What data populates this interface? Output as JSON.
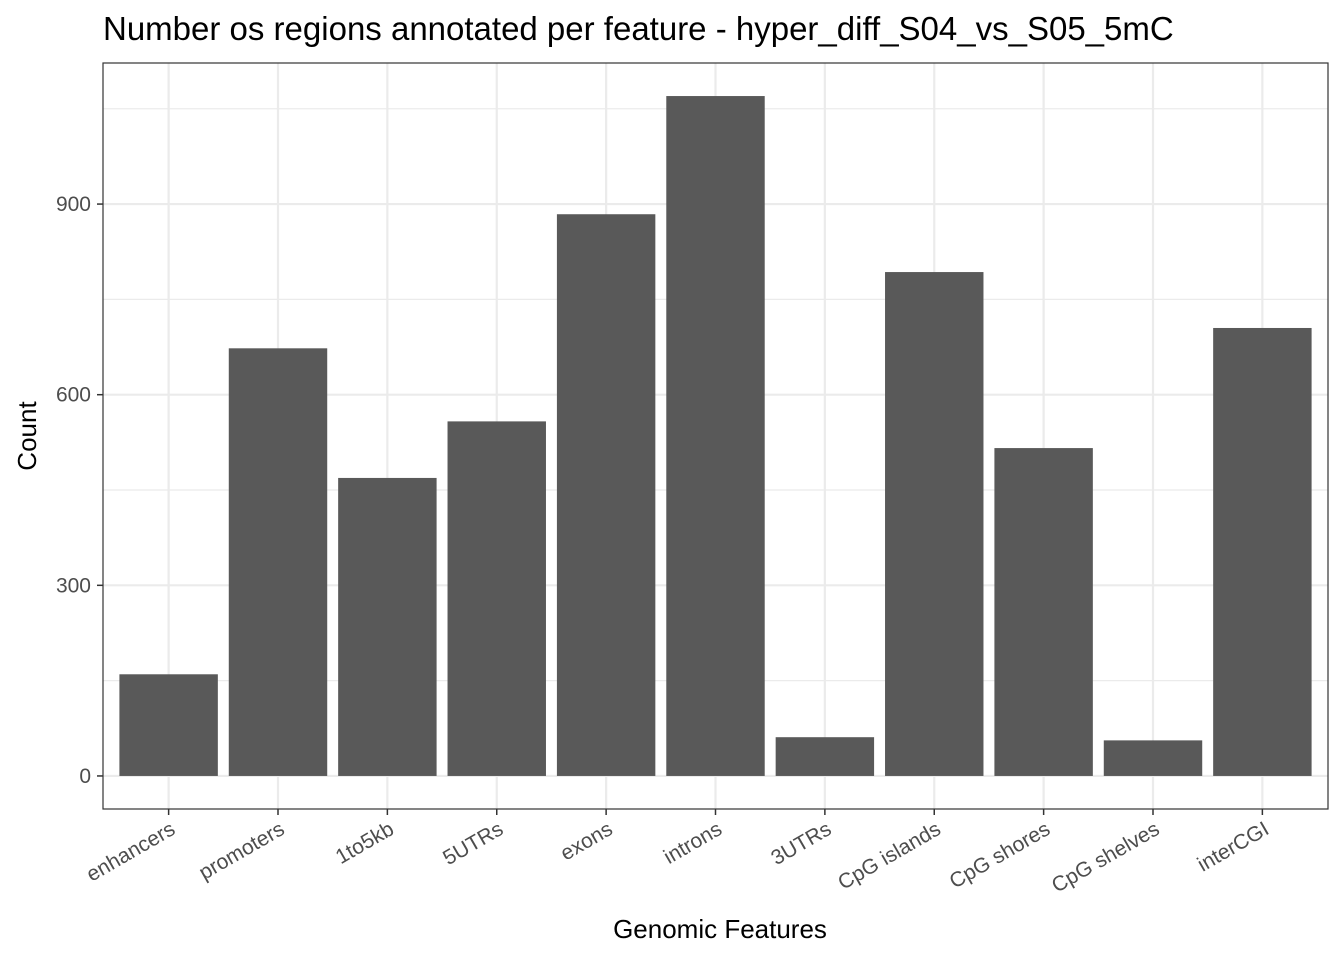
{
  "chart_data": {
    "type": "bar",
    "title": "Number os regions annotated per feature - hyper_diff_S04_vs_S05_5mC",
    "xlabel": "Genomic Features",
    "ylabel": "Count",
    "categories": [
      "enhancers",
      "promoters",
      "1to5kb",
      "5UTRs",
      "exons",
      "introns",
      "3UTRs",
      "CpG islands",
      "CpG shores",
      "CpG shelves",
      "interCGI"
    ],
    "values": [
      160,
      673,
      469,
      558,
      884,
      1070,
      61,
      793,
      516,
      56,
      705
    ],
    "ylim": [
      -52,
      1122
    ],
    "yticks": [
      0,
      300,
      600,
      900
    ],
    "grid": true,
    "bar_color": "#595959",
    "grid_color": "#ebebeb",
    "panel_border_color": "#333333"
  }
}
